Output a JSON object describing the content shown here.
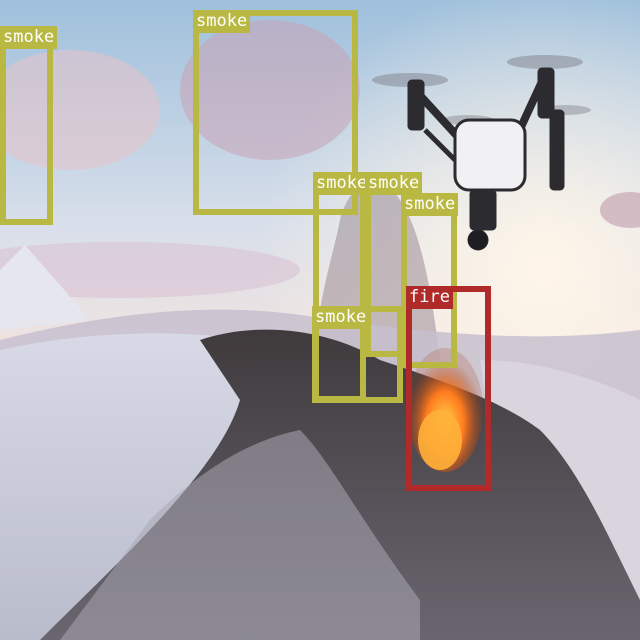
{
  "detection_overlay": {
    "colors": {
      "smoke": "#b8b843",
      "fire": "#b02a2a"
    },
    "detections": [
      {
        "label": "smoke",
        "class": "smoke"
      },
      {
        "label": "smoke",
        "class": "smoke"
      },
      {
        "label": "smoke",
        "class": "smoke"
      },
      {
        "label": "smoke",
        "class": "smoke"
      },
      {
        "label": "smoke",
        "class": "smoke"
      },
      {
        "label": "smoke",
        "class": "smoke"
      },
      {
        "label": "fire",
        "class": "fire"
      }
    ]
  }
}
